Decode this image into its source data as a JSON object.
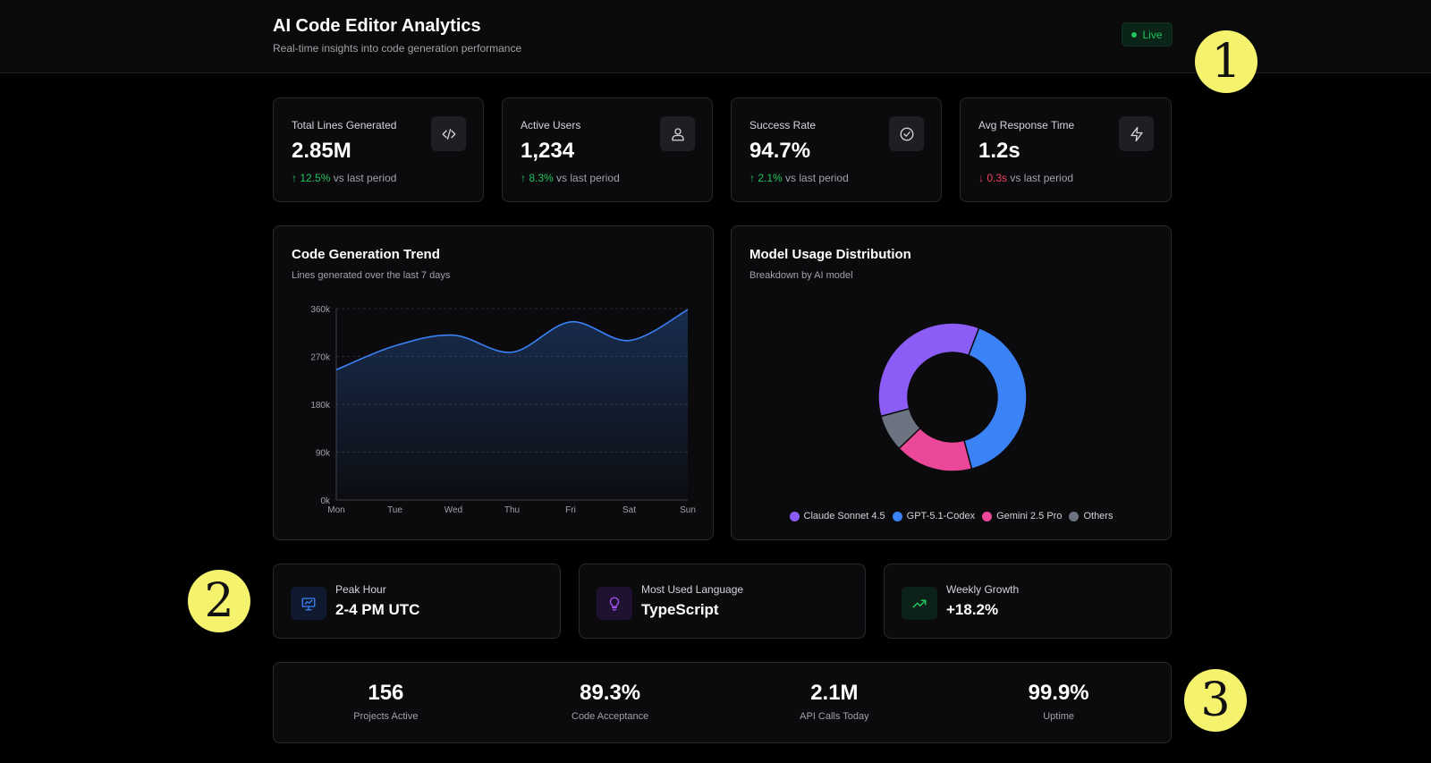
{
  "header": {
    "title": "AI Code Editor Analytics",
    "subtitle": "Real-time insights into code generation performance",
    "live_label": "Live"
  },
  "stats": [
    {
      "label": "Total Lines Generated",
      "value": "2.85M",
      "change": "12.5%",
      "direction": "up",
      "suffix": "vs last period",
      "icon": "code-icon"
    },
    {
      "label": "Active Users",
      "value": "1,234",
      "change": "8.3%",
      "direction": "up",
      "suffix": "vs last period",
      "icon": "users-icon"
    },
    {
      "label": "Success Rate",
      "value": "94.7%",
      "change": "2.1%",
      "direction": "up",
      "suffix": "vs last period",
      "icon": "check-circle-icon"
    },
    {
      "label": "Avg Response Time",
      "value": "1.2s",
      "change": "0.3s",
      "direction": "down",
      "suffix": "vs last period",
      "icon": "bolt-icon"
    }
  ],
  "trend": {
    "title": "Code Generation Trend",
    "subtitle": "Lines generated over the last 7 days"
  },
  "distribution": {
    "title": "Model Usage Distribution",
    "subtitle": "Breakdown by AI model"
  },
  "chart_data": [
    {
      "type": "area",
      "title": "Code Generation Trend",
      "categories": [
        "Mon",
        "Tue",
        "Wed",
        "Thu",
        "Fri",
        "Sat",
        "Sun"
      ],
      "values": [
        245000,
        290000,
        310000,
        278000,
        335000,
        300000,
        358000
      ],
      "y_ticks": [
        "0k",
        "90k",
        "180k",
        "270k",
        "360k"
      ],
      "ylim": [
        0,
        360000
      ],
      "grid": true,
      "color": "#3b82f6"
    },
    {
      "type": "pie",
      "title": "Model Usage Distribution",
      "labels": [
        "Claude Sonnet 4.5",
        "GPT-5.1-Codex",
        "Gemini 2.5 Pro",
        "Others"
      ],
      "values": [
        35,
        40,
        17,
        8
      ],
      "colors": [
        "#8b5cf6",
        "#3b82f6",
        "#ec4899",
        "#6b7280"
      ],
      "legend": "bottom"
    }
  ],
  "info": [
    {
      "label": "Peak Hour",
      "value": "2-4 PM UTC",
      "icon": "presentation-chart-icon",
      "color": "#3b82f6"
    },
    {
      "label": "Most Used Language",
      "value": "TypeScript",
      "icon": "lightbulb-icon",
      "color": "#a855f7"
    },
    {
      "label": "Weekly Growth",
      "value": "+18.2%",
      "icon": "trending-up-icon",
      "color": "#22c55e"
    }
  ],
  "summary": [
    {
      "value": "156",
      "label": "Projects Active"
    },
    {
      "value": "89.3%",
      "label": "Code Acceptance"
    },
    {
      "value": "2.1M",
      "label": "API Calls Today"
    },
    {
      "value": "99.9%",
      "label": "Uptime"
    }
  ],
  "badges": [
    "1",
    "2",
    "3"
  ]
}
